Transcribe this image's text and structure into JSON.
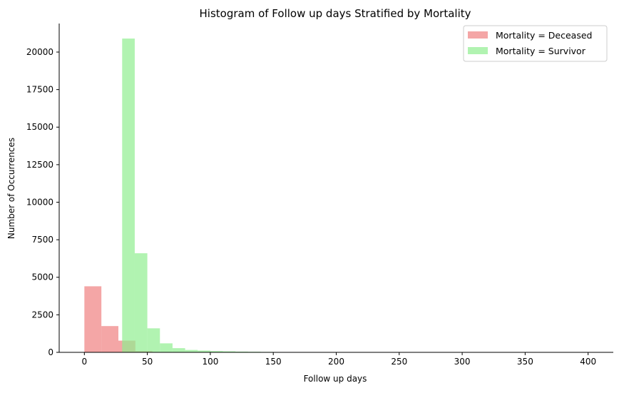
{
  "chart_data": {
    "type": "bar",
    "title": "Histogram of Follow up days Stratified by Mortality",
    "xlabel": "Follow up days",
    "ylabel": "Number of Occurrences",
    "xlim": [
      -20,
      420
    ],
    "ylim": [
      0,
      21900
    ],
    "x_ticks": [
      0,
      50,
      100,
      150,
      200,
      250,
      300,
      350,
      400
    ],
    "y_ticks": [
      0,
      2500,
      5000,
      7500,
      10000,
      12500,
      15000,
      17500,
      20000
    ],
    "grid": false,
    "legend_position": "top-right",
    "series": [
      {
        "name": "Mortality = Deceased",
        "color": "#f08080",
        "opacity": 0.7,
        "bins": [
          {
            "x0": 0,
            "x1": 13.5,
            "value": 4400
          },
          {
            "x0": 13.5,
            "x1": 27,
            "value": 1750
          },
          {
            "x0": 27,
            "x1": 40.5,
            "value": 780
          },
          {
            "x0": 40.5,
            "x1": 54,
            "value": 80
          },
          {
            "x0": 54,
            "x1": 67.5,
            "value": 20
          }
        ]
      },
      {
        "name": "Mortality = Survivor",
        "color": "#90ee90",
        "opacity": 0.7,
        "bins": [
          {
            "x0": 30,
            "x1": 40,
            "value": 20900
          },
          {
            "x0": 40,
            "x1": 50,
            "value": 6600
          },
          {
            "x0": 50,
            "x1": 60,
            "value": 1600
          },
          {
            "x0": 60,
            "x1": 70,
            "value": 600
          },
          {
            "x0": 70,
            "x1": 80,
            "value": 280
          },
          {
            "x0": 80,
            "x1": 90,
            "value": 160
          },
          {
            "x0": 90,
            "x1": 100,
            "value": 120
          },
          {
            "x0": 100,
            "x1": 110,
            "value": 90
          },
          {
            "x0": 110,
            "x1": 120,
            "value": 70
          },
          {
            "x0": 120,
            "x1": 130,
            "value": 50
          },
          {
            "x0": 130,
            "x1": 140,
            "value": 40
          },
          {
            "x0": 140,
            "x1": 150,
            "value": 30
          },
          {
            "x0": 150,
            "x1": 160,
            "value": 20
          },
          {
            "x0": 160,
            "x1": 170,
            "value": 15
          },
          {
            "x0": 170,
            "x1": 180,
            "value": 10
          },
          {
            "x0": 180,
            "x1": 190,
            "value": 8
          },
          {
            "x0": 190,
            "x1": 200,
            "value": 6
          },
          {
            "x0": 200,
            "x1": 210,
            "value": 5
          },
          {
            "x0": 210,
            "x1": 220,
            "value": 4
          },
          {
            "x0": 220,
            "x1": 230,
            "value": 3
          },
          {
            "x0": 230,
            "x1": 240,
            "value": 3
          },
          {
            "x0": 240,
            "x1": 250,
            "value": 2
          },
          {
            "x0": 250,
            "x1": 260,
            "value": 2
          },
          {
            "x0": 260,
            "x1": 270,
            "value": 2
          },
          {
            "x0": 270,
            "x1": 280,
            "value": 1
          },
          {
            "x0": 280,
            "x1": 290,
            "value": 1
          },
          {
            "x0": 290,
            "x1": 300,
            "value": 1
          },
          {
            "x0": 300,
            "x1": 310,
            "value": 1
          },
          {
            "x0": 310,
            "x1": 320,
            "value": 1
          },
          {
            "x0": 320,
            "x1": 330,
            "value": 1
          },
          {
            "x0": 330,
            "x1": 340,
            "value": 1
          },
          {
            "x0": 340,
            "x1": 350,
            "value": 1
          },
          {
            "x0": 350,
            "x1": 360,
            "value": 1
          },
          {
            "x0": 360,
            "x1": 370,
            "value": 1
          },
          {
            "x0": 370,
            "x1": 380,
            "value": 1
          },
          {
            "x0": 380,
            "x1": 390,
            "value": 1
          },
          {
            "x0": 390,
            "x1": 400,
            "value": 1
          }
        ]
      }
    ]
  }
}
